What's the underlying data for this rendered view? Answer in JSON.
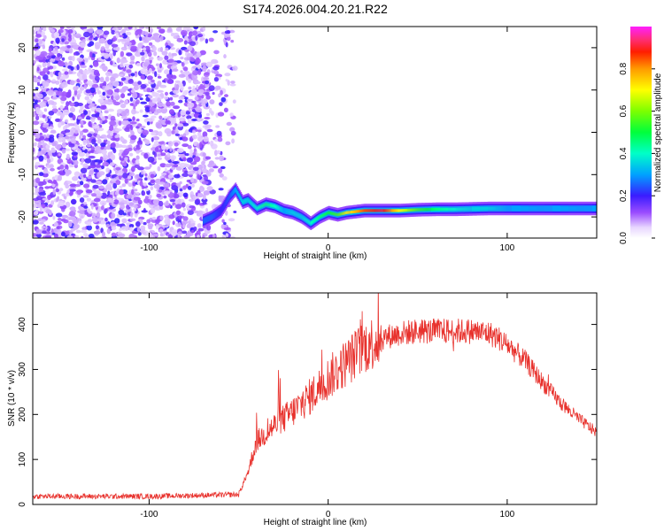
{
  "title": "S174.2026.004.20.21.R22",
  "chart_data": [
    {
      "type": "heatmap",
      "xlabel": "Height of straight line (km)",
      "ylabel": "Frequency (Hz)",
      "xlim": [
        -165,
        150
      ],
      "ylim": [
        -25,
        25
      ],
      "xticks": [
        -100,
        0,
        100
      ],
      "yticks": [
        -20,
        -10,
        0,
        10,
        20
      ],
      "colorbar": {
        "label": "Normalized spectral amplitude",
        "range": [
          0,
          1
        ],
        "ticks": [
          0.0,
          0.2,
          0.4,
          0.6,
          0.8
        ]
      },
      "ridge": {
        "x": [
          -70,
          -65,
          -60,
          -55,
          -52,
          -48,
          -45,
          -40,
          -35,
          -30,
          -25,
          -20,
          -15,
          -10,
          -5,
          0,
          5,
          10,
          20,
          30,
          40,
          50,
          60,
          70,
          80,
          90,
          100,
          110,
          120,
          130,
          140,
          150
        ],
        "freq_hz": [
          -21,
          -20,
          -18.5,
          -15,
          -13.5,
          -16.5,
          -16,
          -18,
          -17,
          -17.5,
          -18.5,
          -19,
          -20,
          -21.5,
          -20,
          -19,
          -19.5,
          -19,
          -18.5,
          -18.5,
          -18.5,
          -18.3,
          -18.2,
          -18.2,
          -18.1,
          -18,
          -18,
          -18,
          -18,
          -18,
          -18,
          -18
        ],
        "amplitude": [
          0.25,
          0.25,
          0.2,
          0.25,
          0.3,
          0.35,
          0.35,
          0.4,
          0.45,
          0.4,
          0.3,
          0.35,
          0.35,
          0.4,
          0.45,
          0.5,
          0.55,
          0.7,
          0.85,
          0.9,
          0.7,
          0.55,
          0.45,
          0.4,
          0.35,
          0.35,
          0.3,
          0.3,
          0.3,
          0.3,
          0.3,
          0.3
        ]
      },
      "noise_region": {
        "x_min": -165,
        "x_max": -52
      }
    },
    {
      "type": "line",
      "xlabel": "Height of straight line (km)",
      "ylabel": "SNR (10 * v/v)",
      "xlim": [
        -165,
        150
      ],
      "ylim": [
        0,
        470
      ],
      "xticks": [
        -100,
        0,
        100
      ],
      "yticks": [
        0,
        100,
        200,
        300,
        400
      ],
      "color": "#e8322d",
      "envelope": {
        "x": [
          -165,
          -100,
          -50,
          -45,
          -40,
          -30,
          -20,
          -10,
          0,
          10,
          20,
          30,
          40,
          50,
          60,
          70,
          80,
          90,
          95,
          100,
          110,
          120,
          130,
          140,
          150
        ],
        "snr": [
          18,
          18,
          22,
          70,
          140,
          175,
          205,
          240,
          280,
          315,
          350,
          370,
          380,
          385,
          385,
          385,
          385,
          380,
          370,
          355,
          320,
          270,
          225,
          190,
          160
        ]
      }
    }
  ]
}
